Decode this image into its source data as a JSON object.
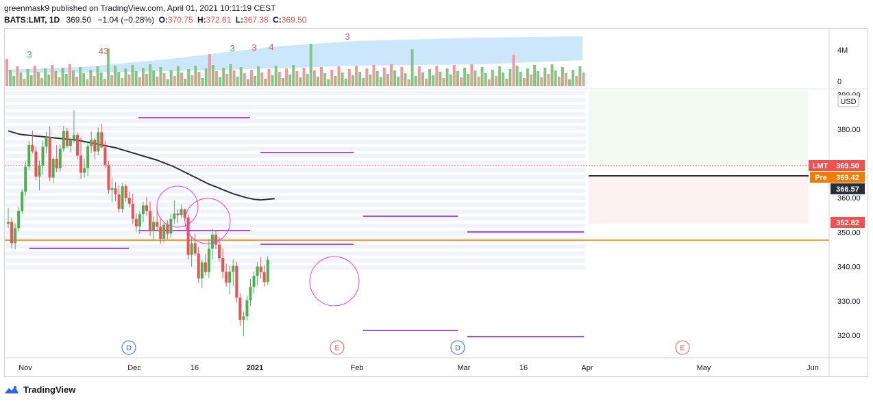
{
  "header": {
    "line1": "greenmask9 published on TradingView.com, April 01, 2021 10:11:19 CEST",
    "symbol": "BATS:LMT, 1D",
    "last": "369.50",
    "change": "−1.04 (−0.28%)",
    "o_label": "O:",
    "o": "370.75",
    "h_label": "H:",
    "h": "372.61",
    "l_label": "L:",
    "l": "367.38",
    "c_label": "C:",
    "c": "369.50"
  },
  "brand": {
    "name": "TradingView"
  },
  "colors": {
    "up": "#4caf50",
    "down": "#ef5350",
    "ma": "#2a2e39",
    "level": "#f57c00",
    "purple": "#a64dea",
    "volume_band": "#bbdefb"
  },
  "chart_data": {
    "type": "candlestick",
    "title": "BATS:LMT, 1D",
    "currency": "USD",
    "y_axis": {
      "min": 316,
      "max": 390,
      "ticks": [
        320,
        330,
        340,
        350,
        360,
        370,
        380,
        390
      ],
      "tick_labels": [
        "320.00",
        "330.00",
        "340.00",
        "350.00",
        "360.00",
        "370.00",
        "380.00",
        "390.00"
      ]
    },
    "x_axis_labels": [
      "Nov",
      "Dec",
      "16",
      "2021",
      "Feb",
      "Mar",
      "16",
      "Apr",
      "May",
      "Jun"
    ],
    "x_axis_ticks_index": [
      0,
      30,
      45,
      62,
      91,
      110,
      126,
      142,
      167,
      188
    ],
    "volume_axis": {
      "labels": [
        "4M",
        "0"
      ],
      "values": [
        4,
        0
      ]
    },
    "ma_200": [
      379.5,
      379.2,
      378.9,
      378.6,
      378.4,
      378.3,
      378.2,
      378.1,
      378.0,
      377.9,
      377.8,
      377.7,
      377.6,
      377.5,
      377.4,
      377.3,
      377.2,
      377.1,
      377.0,
      376.9,
      376.8,
      376.6,
      376.4,
      376.2,
      376.0,
      375.8,
      375.6,
      375.4,
      375.2,
      375.0,
      374.8,
      374.6,
      374.3,
      374.0,
      373.7,
      373.4,
      373.1,
      372.8,
      372.5,
      372.2,
      371.9,
      371.6,
      371.3,
      371.0,
      370.6,
      370.2,
      369.8,
      369.4,
      369.0,
      368.5,
      368.0,
      367.5,
      367.0,
      366.5,
      366.0,
      365.5,
      365.0,
      364.5,
      364.0,
      363.6,
      363.2,
      362.8,
      362.4,
      362.0,
      361.6,
      361.2,
      360.9,
      360.6,
      360.3,
      360.0,
      359.8,
      359.6,
      359.5,
      359.4,
      359.5,
      359.6,
      359.7,
      359.8
    ]
  },
  "price_labels": [
    {
      "name": "LMT",
      "value": "369.50"
    },
    {
      "name": "Pre",
      "value": "369.42"
    },
    {
      "name": "",
      "value": "366.57"
    },
    {
      "name": "",
      "value": "352.82"
    }
  ],
  "counts": [
    "3",
    "43",
    "3",
    "3",
    "4",
    "3"
  ],
  "events": [
    {
      "letter": "D"
    },
    {
      "letter": "E"
    },
    {
      "letter": "D"
    },
    {
      "letter": "E"
    }
  ],
  "candles": [
    [
      352.5,
      357.1,
      351.2,
      353.0
    ],
    [
      353.0,
      354.2,
      345.3,
      346.8
    ],
    [
      346.8,
      352.6,
      345.0,
      351.2
    ],
    [
      351.2,
      357.3,
      350.2,
      356.2
    ],
    [
      356.2,
      362.6,
      355.4,
      361.8
    ],
    [
      361.8,
      370.5,
      360.7,
      369.1
    ],
    [
      369.1,
      376.6,
      368.1,
      375.4
    ],
    [
      375.4,
      379.6,
      372.9,
      373.5
    ],
    [
      373.5,
      374.9,
      365.1,
      366.2
    ],
    [
      366.2,
      370.9,
      362.2,
      369.4
    ],
    [
      369.4,
      376.6,
      366.8,
      374.9
    ],
    [
      374.9,
      379.2,
      373.0,
      377.8
    ],
    [
      377.8,
      380.8,
      364.8,
      365.9
    ],
    [
      365.9,
      371.9,
      364.3,
      371.4
    ],
    [
      371.4,
      375.4,
      367.5,
      368.6
    ],
    [
      368.6,
      375.5,
      367.6,
      374.3
    ],
    [
      374.3,
      381.0,
      373.5,
      379.5
    ],
    [
      379.5,
      380.4,
      374.6,
      375.1
    ],
    [
      375.1,
      377.7,
      373.2,
      377.0
    ],
    [
      377.0,
      385.5,
      376.0,
      378.3
    ],
    [
      378.3,
      379.1,
      371.2,
      372.3
    ],
    [
      372.3,
      377.7,
      365.6,
      367.3
    ],
    [
      367.3,
      371.5,
      365.9,
      368.7
    ],
    [
      368.7,
      375.9,
      366.3,
      375.0
    ],
    [
      375.0,
      379.3,
      373.1,
      376.9
    ],
    [
      376.9,
      377.6,
      371.1,
      373.5
    ],
    [
      373.5,
      380.5,
      372.4,
      379.1
    ],
    [
      379.1,
      381.6,
      374.4,
      374.7
    ],
    [
      374.7,
      376.6,
      368.6,
      369.6
    ],
    [
      369.6,
      370.8,
      361.2,
      362.3
    ],
    [
      362.3,
      366.1,
      358.7,
      362.8
    ],
    [
      362.8,
      364.6,
      359.1,
      361.0
    ],
    [
      361.0,
      363.6,
      355.6,
      356.8
    ],
    [
      356.8,
      364.3,
      355.7,
      363.4
    ],
    [
      363.4,
      364.0,
      358.9,
      360.0
    ],
    [
      360.0,
      361.8,
      357.3,
      358.3
    ],
    [
      358.3,
      361.2,
      352.4,
      353.9
    ],
    [
      353.9,
      355.5,
      350.2,
      351.7
    ],
    [
      351.7,
      356.0,
      349.5,
      355.2
    ],
    [
      355.2,
      358.9,
      352.9,
      357.8
    ],
    [
      357.8,
      360.2,
      354.8,
      356.2
    ],
    [
      356.2,
      358.9,
      348.9,
      350.4
    ],
    [
      350.4,
      354.6,
      347.6,
      353.0
    ],
    [
      353.0,
      357.2,
      350.3,
      351.6
    ],
    [
      351.6,
      353.8,
      346.6,
      348.1
    ],
    [
      348.1,
      353.1,
      346.9,
      352.2
    ],
    [
      352.2,
      353.5,
      348.0,
      349.6
    ],
    [
      349.6,
      355.4,
      348.4,
      353.9
    ],
    [
      353.9,
      359.2,
      352.4,
      355.4
    ],
    [
      355.4,
      356.7,
      352.8,
      355.0
    ],
    [
      355.0,
      358.1,
      354.1,
      356.7
    ],
    [
      356.7,
      356.8,
      353.3,
      354.3
    ],
    [
      354.3,
      355.2,
      342.0,
      343.4
    ],
    [
      343.4,
      348.8,
      340.0,
      346.8
    ],
    [
      346.8,
      349.6,
      343.2,
      343.8
    ],
    [
      343.8,
      345.7,
      335.2,
      336.6
    ],
    [
      336.6,
      342.0,
      333.8,
      341.2
    ],
    [
      341.2,
      343.6,
      337.4,
      338.4
    ],
    [
      338.4,
      348.0,
      336.6,
      345.2
    ],
    [
      345.2,
      350.9,
      342.1,
      349.3
    ],
    [
      349.3,
      350.6,
      345.1,
      346.4
    ],
    [
      346.4,
      348.5,
      341.4,
      342.5
    ],
    [
      342.5,
      345.3,
      336.6,
      338.5
    ],
    [
      338.5,
      340.8,
      334.1,
      335.3
    ],
    [
      335.3,
      340.2,
      331.9,
      338.5
    ],
    [
      338.5,
      342.1,
      334.3,
      340.2
    ],
    [
      340.2,
      341.4,
      329.5,
      331.0
    ],
    [
      331.0,
      332.2,
      322.8,
      324.4
    ],
    [
      324.4,
      326.9,
      319.8,
      325.5
    ],
    [
      325.5,
      331.6,
      324.3,
      330.2
    ],
    [
      330.2,
      336.3,
      328.6,
      334.1
    ],
    [
      334.1,
      338.6,
      332.2,
      337.3
    ],
    [
      337.3,
      341.3,
      334.6,
      340.0
    ],
    [
      340.0,
      342.8,
      336.5,
      338.4
    ],
    [
      338.4,
      340.4,
      334.2,
      335.5
    ],
    [
      335.5,
      343.0,
      334.7,
      342.0
    ]
  ]
}
